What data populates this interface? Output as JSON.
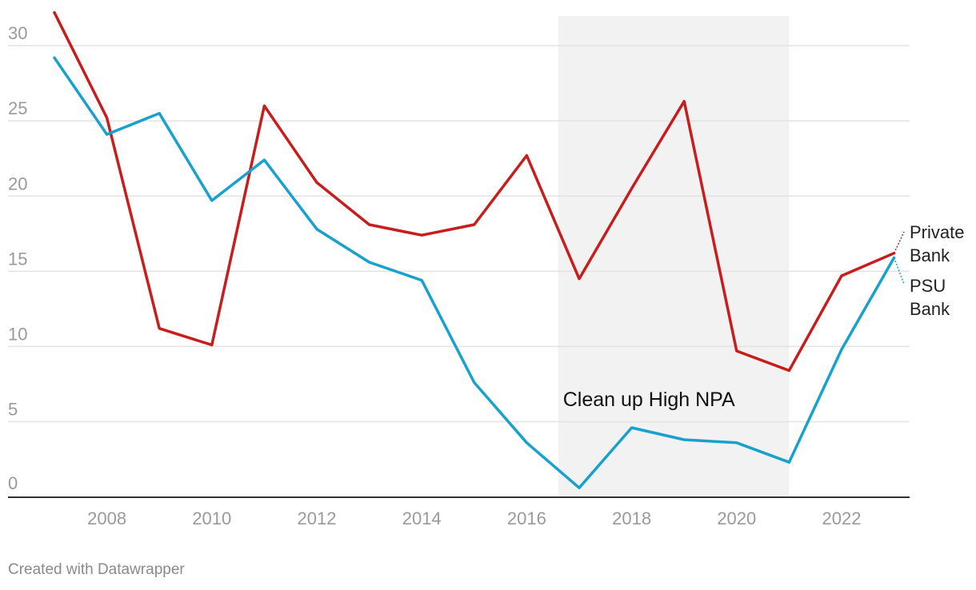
{
  "chart_data": {
    "type": "line",
    "x": [
      2007,
      2008,
      2009,
      2010,
      2011,
      2012,
      2013,
      2014,
      2015,
      2016,
      2017,
      2018,
      2019,
      2020,
      2021,
      2022,
      2023
    ],
    "x_ticks": [
      2008,
      2010,
      2012,
      2014,
      2016,
      2018,
      2020,
      2022
    ],
    "y_ticks": [
      0,
      5,
      10,
      15,
      20,
      25,
      30
    ],
    "ylim": [
      0,
      32
    ],
    "xlim": [
      2006.5,
      2024.3
    ],
    "grid": true,
    "series": [
      {
        "name": "Private Bank",
        "name_lines": [
          "Private",
          "Bank"
        ],
        "color": "#c71e1d",
        "values": [
          32.2,
          25.2,
          11.2,
          10.1,
          26.0,
          20.9,
          18.1,
          17.4,
          18.1,
          22.7,
          14.5,
          20.5,
          26.3,
          9.7,
          8.4,
          14.7,
          16.2
        ]
      },
      {
        "name": "PSU Bank",
        "name_lines": [
          "PSU",
          "Bank"
        ],
        "color": "#18a1cd",
        "values": [
          29.2,
          24.1,
          25.5,
          19.7,
          22.4,
          17.8,
          15.6,
          14.4,
          7.6,
          3.6,
          0.6,
          4.6,
          3.8,
          3.6,
          2.3,
          9.8,
          15.9
        ]
      }
    ],
    "annotations": [
      {
        "text": "Clean up High NPA",
        "x_start": 2016.6,
        "x_end": 2021.0,
        "shade_color": "#f2f2f2"
      }
    ]
  },
  "footer": {
    "credit": "Created with Datawrapper"
  }
}
